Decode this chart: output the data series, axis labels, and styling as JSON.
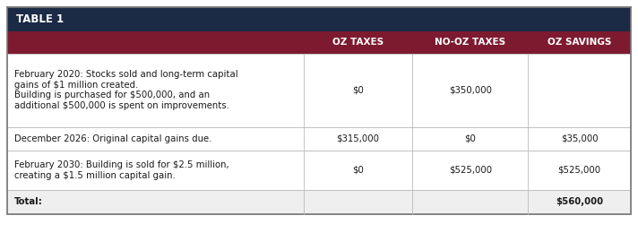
{
  "title": "TABLE 1",
  "title_bg": "#1b2a45",
  "title_color": "#ffffff",
  "header_bg": "#7d1a30",
  "header_color": "#ffffff",
  "header_cols": [
    "",
    "OZ TAXES",
    "NO-OZ TAXES",
    "OZ SAVINGS"
  ],
  "rows": [
    {
      "description": "February 2020: Stocks sold and long-term capital\ngains of $1 million created.\nBuilding is purchased for $500,000, and an\nadditional $500,000 is spent on improvements.",
      "oz_taxes": "$0",
      "no_oz_taxes": "$350,000",
      "oz_savings": "",
      "is_total": false
    },
    {
      "description": "December 2026: Original capital gains due.",
      "oz_taxes": "$315,000",
      "no_oz_taxes": "$0",
      "oz_savings": "$35,000",
      "is_total": false
    },
    {
      "description": "February 2030: Building is sold for $2.5 million,\ncreating a $1.5 million capital gain.",
      "oz_taxes": "$0",
      "no_oz_taxes": "$525,000",
      "oz_savings": "$525,000",
      "is_total": false
    },
    {
      "description": "Total:",
      "oz_taxes": "",
      "no_oz_taxes": "",
      "oz_savings": "$560,000",
      "is_total": true
    }
  ],
  "border_color": "#bbbbbb",
  "text_color": "#1a1a1a",
  "fig_bg": "#ffffff",
  "fig_w": 7.12,
  "fig_h": 2.6,
  "dpi": 100
}
